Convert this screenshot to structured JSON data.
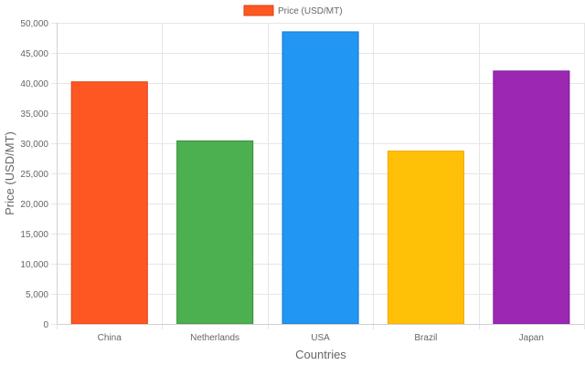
{
  "chart_data": {
    "type": "bar",
    "categories": [
      "China",
      "Netherlands",
      "USA",
      "Brazil",
      "Japan"
    ],
    "series": [
      {
        "name": "Price (USD/MT)",
        "values": [
          40200,
          30400,
          48500,
          28700,
          42000
        ]
      }
    ],
    "bar_colors": [
      "#FF5722",
      "#4CAF50",
      "#2196F3",
      "#FFC107",
      "#9C27B0"
    ],
    "bar_border_colors": [
      "#d84315",
      "#388e3c",
      "#1976d2",
      "#ffa000",
      "#7b1fa2"
    ],
    "xlabel": "Countries",
    "ylabel": "Price (USD/MT)",
    "ylim": [
      0,
      50000
    ],
    "yticks": [
      "0",
      "5,000",
      "10,000",
      "15,000",
      "20,000",
      "25,000",
      "30,000",
      "35,000",
      "40,000",
      "45,000",
      "50,000"
    ],
    "ytick_values": [
      0,
      5000,
      10000,
      15000,
      20000,
      25000,
      30000,
      35000,
      40000,
      45000,
      50000
    ],
    "grid": true,
    "legend": {
      "position": "top",
      "label": "Price (USD/MT)",
      "swatch_color": "#FF5722",
      "swatch_border": "#d84315"
    }
  }
}
